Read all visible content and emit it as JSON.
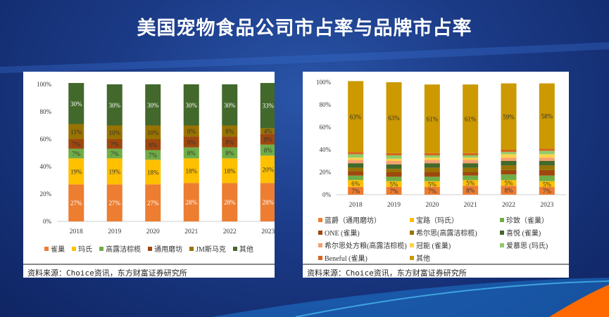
{
  "title": "美国宠物食品公司市占率与品牌市占率",
  "source": "资料来源：Choice资讯，东方财富证券研究所",
  "chart_data": [
    {
      "type": "bar",
      "stacked": true,
      "percent": true,
      "categories": [
        "2018",
        "2019",
        "2020",
        "2021",
        "2022",
        "2023"
      ],
      "ylim": [
        0,
        100
      ],
      "yticks": [
        "0%",
        "20%",
        "40%",
        "60%",
        "80%",
        "100%"
      ],
      "legend_position": "bottom",
      "series": [
        {
          "name": "雀巢",
          "color": "#ED7D31",
          "values": [
            27,
            27,
            27,
            28,
            28,
            28
          ],
          "labels": true,
          "label_color": "#fff"
        },
        {
          "name": "玛氏",
          "color": "#FFC000",
          "values": [
            19,
            19,
            18,
            18,
            18,
            20
          ],
          "labels": true,
          "label_color": "#333"
        },
        {
          "name": "高露洁棕榄",
          "color": "#70AD47",
          "values": [
            7,
            7,
            7,
            8,
            8,
            8
          ],
          "labels": true,
          "label_color": "#333"
        },
        {
          "name": "通用磨坊",
          "color": "#9E480E",
          "values": [
            7,
            7,
            8,
            8,
            8,
            8
          ],
          "labels": true,
          "label_color": "#333"
        },
        {
          "name": "JM斯马克",
          "color": "#997300",
          "values": [
            11,
            10,
            10,
            8,
            8,
            4
          ],
          "labels": true,
          "label_color": "#333"
        },
        {
          "name": "其他",
          "color": "#43682B",
          "values": [
            30,
            30,
            30,
            30,
            30,
            33
          ],
          "labels": true,
          "label_color": "#fff"
        }
      ]
    },
    {
      "type": "bar",
      "stacked": true,
      "percent": true,
      "categories": [
        "2018",
        "2019",
        "2020",
        "2021",
        "2022",
        "2023"
      ],
      "ylim": [
        0,
        100
      ],
      "yticks": [
        "0%",
        "20%",
        "40%",
        "60%",
        "80%",
        "100%"
      ],
      "legend_position": "bottom",
      "series": [
        {
          "name": "蓝爵（通用磨坊）",
          "color": "#ED7D31",
          "values": [
            7,
            7,
            7,
            8,
            8,
            7
          ],
          "labels": true,
          "label_color": "#333"
        },
        {
          "name": "宝路（玛氏）",
          "color": "#FFC000",
          "values": [
            6,
            5,
            5,
            5,
            5,
            5
          ],
          "labels": true,
          "label_color": "#333"
        },
        {
          "name": "珍致（雀巢）",
          "color": "#70AD47",
          "values": [
            4,
            4,
            4,
            4,
            5,
            5
          ],
          "labels": false
        },
        {
          "name": "ONE (雀巢)",
          "color": "#9E480E",
          "values": [
            4,
            4,
            4,
            3,
            4,
            5
          ],
          "labels": false
        },
        {
          "name": "希尔思(高露洁棕榄)",
          "color": "#997300",
          "values": [
            3,
            3,
            4,
            4,
            4,
            4
          ],
          "labels": false
        },
        {
          "name": "喜悦 (雀巢)",
          "color": "#43682B",
          "values": [
            4,
            4,
            4,
            4,
            4,
            4
          ],
          "labels": false
        },
        {
          "name": "希尔思处方粮(高露洁棕榄)",
          "color": "#F4A070",
          "values": [
            3,
            3,
            3,
            3,
            3,
            3
          ],
          "labels": false
        },
        {
          "name": "冠能 (雀巢)",
          "color": "#FFD347",
          "values": [
            2,
            2,
            2,
            2,
            3,
            3
          ],
          "labels": false
        },
        {
          "name": "爱慕思 (玛氏)",
          "color": "#8FCB6C",
          "values": [
            3,
            3,
            2,
            2,
            2,
            3
          ],
          "labels": false
        },
        {
          "name": "Beneful (雀巢)",
          "color": "#D8641C",
          "values": [
            2,
            2,
            2,
            2,
            2,
            2
          ],
          "labels": false
        },
        {
          "name": "其他",
          "color": "#CC9900",
          "values": [
            63,
            63,
            61,
            61,
            59,
            58
          ],
          "labels": true,
          "label_color": "#333"
        }
      ]
    }
  ]
}
